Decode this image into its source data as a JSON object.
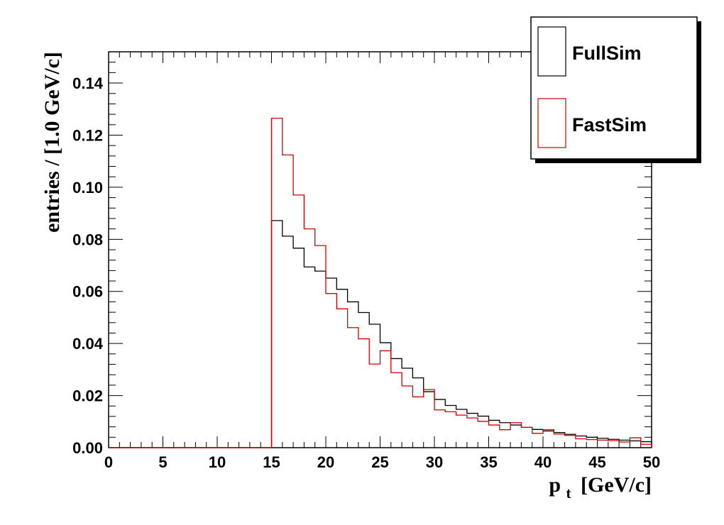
{
  "chart_data": {
    "type": "histogram",
    "x_axis_label_main": "p",
    "x_axis_label_sub": "t",
    "x_axis_label_unit": "[GeV/c]",
    "ylabel": "entries / [1.0 GeV/c]",
    "xlim": [
      0,
      50
    ],
    "ylim": [
      0,
      0.152
    ],
    "grid": false,
    "legend_position": "top-right",
    "x_ticks": [
      0,
      5,
      10,
      15,
      20,
      25,
      30,
      35,
      40,
      45,
      50
    ],
    "x_tick_labels": [
      "0",
      "5",
      "10",
      "15",
      "20",
      "25",
      "30",
      "35",
      "40",
      "45",
      "50"
    ],
    "y_ticks": [
      0,
      0.02,
      0.04,
      0.06,
      0.08,
      0.1,
      0.12,
      0.14
    ],
    "y_tick_labels": [
      "0.00",
      "0.02",
      "0.04",
      "0.06",
      "0.08",
      "0.10",
      "0.12",
      "0.14"
    ],
    "bin_edges": [
      0,
      1,
      2,
      3,
      4,
      5,
      6,
      7,
      8,
      9,
      10,
      11,
      12,
      13,
      14,
      15,
      16,
      17,
      18,
      19,
      20,
      21,
      22,
      23,
      24,
      25,
      26,
      27,
      28,
      29,
      30,
      31,
      32,
      33,
      34,
      35,
      36,
      37,
      38,
      39,
      40,
      41,
      42,
      43,
      44,
      45,
      46,
      47,
      48,
      49,
      50
    ],
    "series": [
      {
        "name": "FullSim",
        "color": "#000000",
        "values": [
          0,
          0,
          0,
          0,
          0,
          0,
          0,
          0,
          0,
          0,
          0,
          0,
          0,
          0,
          0,
          0.0872,
          0.0812,
          0.0766,
          0.0694,
          0.0678,
          0.0651,
          0.0608,
          0.056,
          0.0519,
          0.0474,
          0.0403,
          0.0342,
          0.0305,
          0.0268,
          0.0215,
          0.0185,
          0.0162,
          0.0147,
          0.0132,
          0.0121,
          0.0105,
          0.0096,
          0.0087,
          0.0078,
          0.007,
          0.0064,
          0.0058,
          0.0051,
          0.0045,
          0.004,
          0.0036,
          0.0032,
          0.0029,
          0.0026,
          0.0023
        ]
      },
      {
        "name": "FastSim",
        "color": "#d40000",
        "values": [
          0,
          0,
          0,
          0,
          0,
          0,
          0,
          0,
          0,
          0,
          0,
          0,
          0,
          0,
          0,
          0.1265,
          0.1124,
          0.097,
          0.084,
          0.0776,
          0.0592,
          0.0533,
          0.0461,
          0.0418,
          0.0321,
          0.0372,
          0.0288,
          0.0237,
          0.0195,
          0.0223,
          0.0145,
          0.0138,
          0.0125,
          0.0114,
          0.0101,
          0.0087,
          0.0069,
          0.0096,
          0.0078,
          0.0055,
          0.0069,
          0.0052,
          0.0047,
          0.0034,
          0.0031,
          0.0029,
          0.0027,
          0.0022,
          0.0038,
          0.0013
        ]
      }
    ]
  }
}
